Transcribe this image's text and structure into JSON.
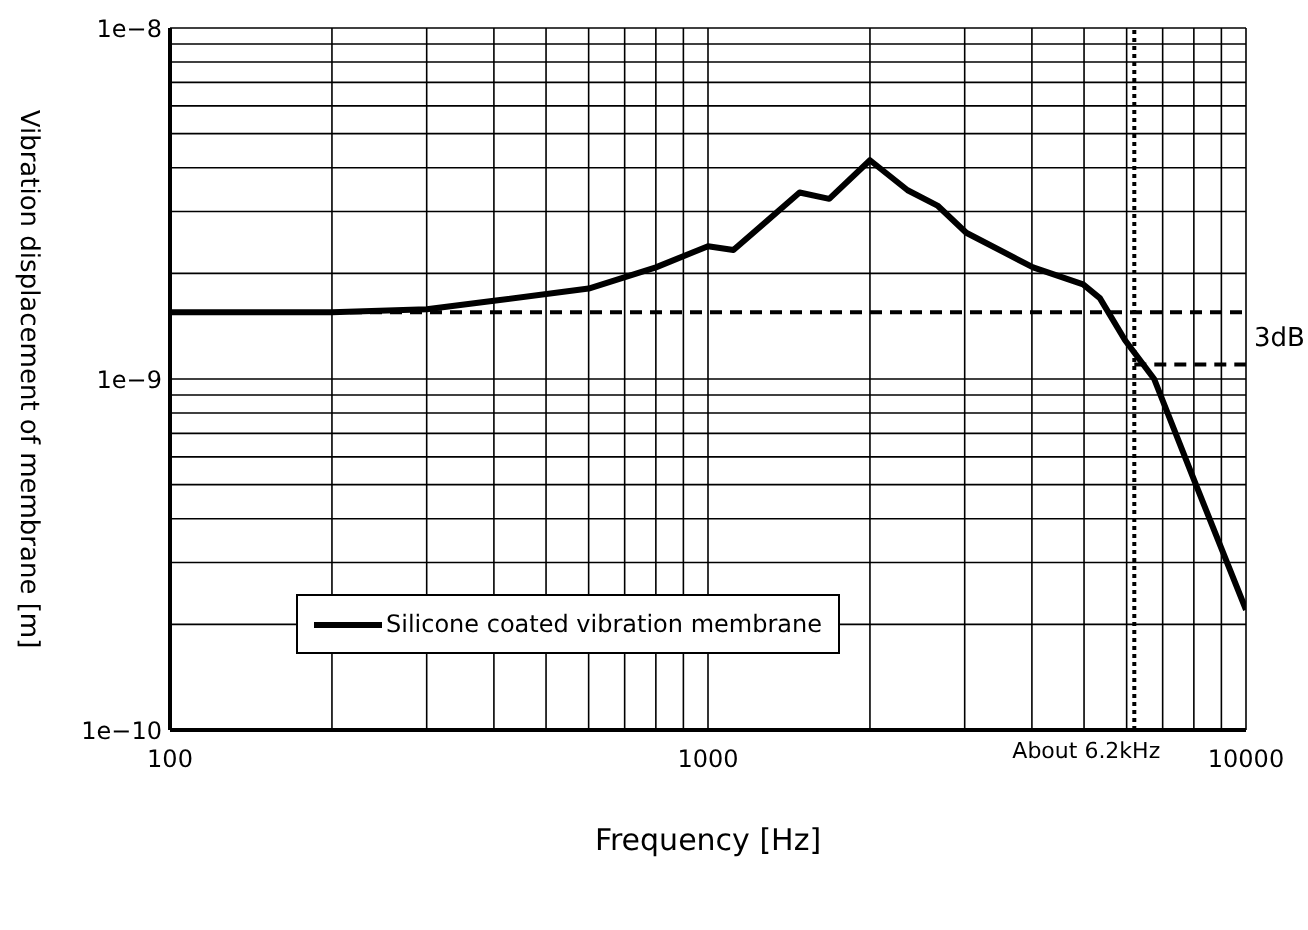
{
  "chart_data": {
    "type": "line",
    "xlabel": "Frequency [Hz]",
    "ylabel": "Vibration displacement of membrane [m]",
    "log": "xy",
    "grid": true,
    "legend": "bottom left",
    "marker": "none",
    "line_style": "solid",
    "xlim": [
      100,
      10000
    ],
    "xticks": [
      100,
      {
        "value": 200,
        "label": null
      },
      {
        "value": 300,
        "label": null
      },
      {
        "value": 400,
        "label": null
      },
      {
        "value": 500,
        "label": null
      },
      {
        "value": 600,
        "label": null
      },
      {
        "value": 700,
        "label": null
      },
      {
        "value": 800,
        "label": null
      },
      {
        "value": 900,
        "label": null
      },
      1000,
      {
        "value": 2000,
        "label": null
      },
      {
        "value": 3000,
        "label": null
      },
      {
        "value": 4000,
        "label": null
      },
      {
        "value": 5000,
        "label": null
      },
      {
        "value": 6000,
        "label": null
      },
      {
        "value": 7000,
        "label": null
      },
      {
        "value": 8000,
        "label": null
      },
      {
        "value": 9000,
        "label": null
      },
      10000
    ],
    "ylim": [
      1e-10,
      1e-08
    ],
    "yticks": [
      {
        "value": 1e-10,
        "label": "1e−10"
      },
      {
        "value": 2e-10,
        "label": null
      },
      {
        "value": 3e-10,
        "label": null
      },
      {
        "value": 4e-10,
        "label": null
      },
      {
        "value": 5e-10,
        "label": null
      },
      {
        "value": 6e-10,
        "label": null
      },
      {
        "value": 7e-10,
        "label": null
      },
      {
        "value": 8e-10,
        "label": null
      },
      {
        "value": 9e-10,
        "label": null
      },
      {
        "value": 1e-09,
        "label": "1e−9"
      },
      {
        "value": 2e-09,
        "label": null
      },
      {
        "value": 3e-09,
        "label": null
      },
      {
        "value": 4e-09,
        "label": null
      },
      {
        "value": 5e-09,
        "label": null
      },
      {
        "value": 6e-09,
        "label": null
      },
      {
        "value": 7e-09,
        "label": null
      },
      {
        "value": 8e-09,
        "label": null
      },
      {
        "value": 9e-09,
        "label": null
      },
      {
        "value": 1e-08,
        "label": "1e−8"
      }
    ],
    "series": [
      {
        "name": "Silicone coated vibration membrane",
        "color": "#000000",
        "x": [
          100,
          200,
          300,
          400,
          600,
          800,
          1000,
          1115,
          1480,
          1680,
          2000,
          2350,
          2670,
          3020,
          4020,
          4980,
          5350,
          5960,
          6750,
          8070,
          10000
        ],
        "values": [
          1.55e-09,
          1.55e-09,
          1.58e-09,
          1.67e-09,
          1.81e-09,
          2.08e-09,
          2.39e-09,
          2.33e-09,
          3.4e-09,
          3.26e-09,
          4.2e-09,
          3.45e-09,
          3.12e-09,
          2.61e-09,
          2.08e-09,
          1.86e-09,
          1.7e-09,
          1.29e-09,
          1e-09,
          5e-10,
          2.2e-10
        ]
      }
    ],
    "ref_lines": [
      {
        "axis": "y",
        "value": 1.55e-09,
        "label": null,
        "color": "#000000",
        "line_style": "dashed"
      },
      {
        "axis": "y",
        "value": 1.1e-09,
        "label": "3dB",
        "color": "#000000",
        "line_style": "dashed"
      },
      {
        "axis": "x",
        "value": 6200,
        "label": "About 6.2kHz",
        "color": "#000000",
        "line_style": "dotted"
      }
    ]
  }
}
